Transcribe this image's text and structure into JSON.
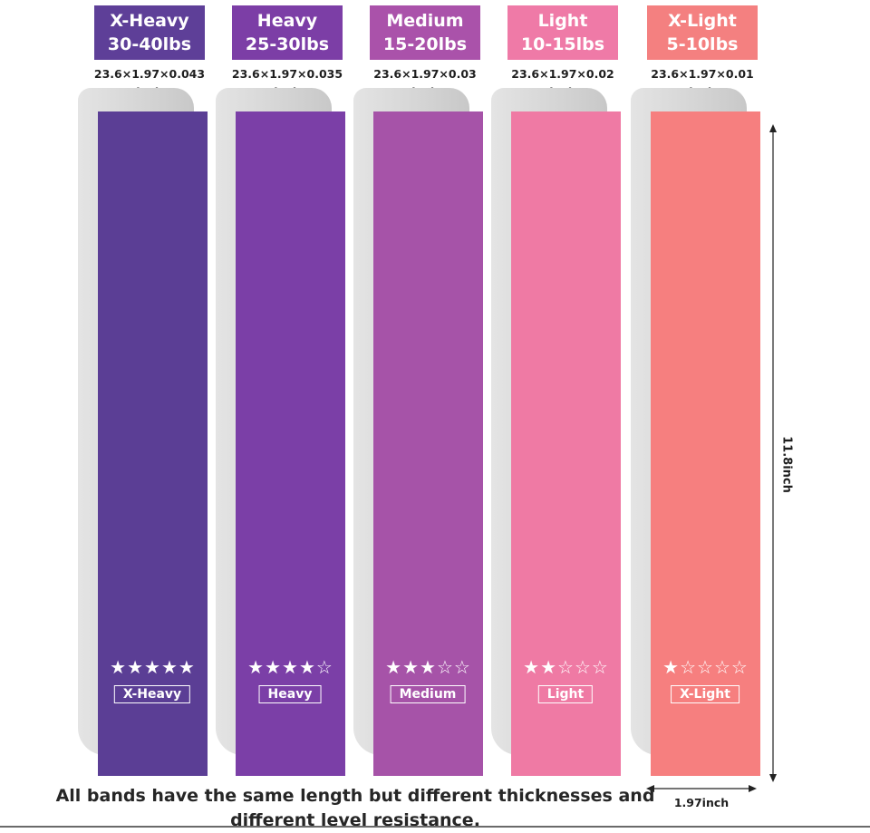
{
  "bands": [
    {
      "key": "x-heavy",
      "name": "X-Heavy",
      "resistance": "30-40lbs",
      "dims_line1": "23.6×1.97×0.043",
      "dims_line2": "inch",
      "tag": "X-Heavy",
      "stars": 5,
      "label_color": "#5e3f98",
      "band_color": "#5b3e95"
    },
    {
      "key": "heavy",
      "name": "Heavy",
      "resistance": "25-30lbs",
      "dims_line1": "23.6×1.97×0.035",
      "dims_line2": "inch",
      "tag": "Heavy",
      "stars": 4,
      "label_color": "#7c3ea6",
      "band_color": "#7b3fa7"
    },
    {
      "key": "medium",
      "name": "Medium",
      "resistance": "15-20lbs",
      "dims_line1": "23.6×1.97×0.03",
      "dims_line2": "inch",
      "tag": "Medium",
      "stars": 3,
      "label_color": "#aa52aa",
      "band_color": "#a653a8"
    },
    {
      "key": "light",
      "name": "Light",
      "resistance": "10-15lbs",
      "dims_line1": "23.6×1.97×0.02",
      "dims_line2": "inch",
      "tag": "Light",
      "stars": 2,
      "label_color": "#ef7aa7",
      "band_color": "#ef7aa4"
    },
    {
      "key": "x-light",
      "name": "X-Light",
      "resistance": "5-10lbs",
      "dims_line1": "23.6×1.97×0.01",
      "dims_line2": "inch",
      "tag": "X-Light",
      "stars": 1,
      "label_color": "#f48080",
      "band_color": "#f67f7f"
    }
  ],
  "measure": {
    "height_label": "11.8inch",
    "width_label": "1.97inch"
  },
  "caption": {
    "line1": "All bands have the same length but different thicknesses and",
    "line2": "different level resistance."
  }
}
